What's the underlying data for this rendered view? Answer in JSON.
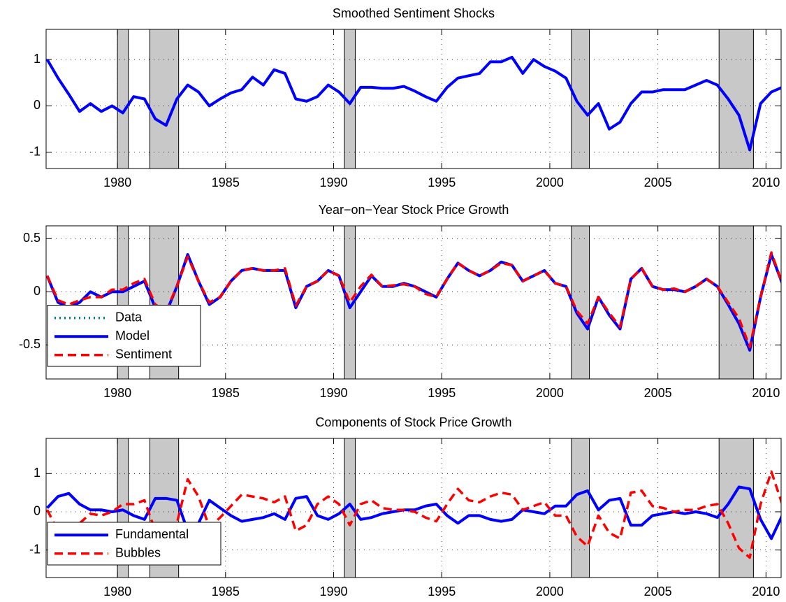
{
  "chart_data": [
    {
      "type": "line",
      "title": "Smoothed Sentiment Shocks",
      "x": [
        1976.75,
        1977.25,
        1977.75,
        1978.25,
        1978.75,
        1979.25,
        1979.75,
        1980.25,
        1980.75,
        1981.25,
        1981.75,
        1982.25,
        1982.75,
        1983.25,
        1983.75,
        1984.25,
        1984.75,
        1985.25,
        1985.75,
        1986.25,
        1986.75,
        1987.25,
        1987.75,
        1988.25,
        1988.75,
        1989.25,
        1989.75,
        1990.25,
        1990.75,
        1991.25,
        1991.75,
        1992.25,
        1992.75,
        1993.25,
        1993.75,
        1994.25,
        1994.75,
        1995.25,
        1995.75,
        1996.25,
        1996.75,
        1997.25,
        1997.75,
        1998.25,
        1998.75,
        1999.25,
        1999.75,
        2000.25,
        2000.75,
        2001.25,
        2001.75,
        2002.25,
        2002.75,
        2003.25,
        2003.75,
        2004.25,
        2004.75,
        2005.25,
        2005.75,
        2006.25,
        2006.75,
        2007.25,
        2007.75,
        2008.25,
        2008.75,
        2009.25,
        2009.75,
        2010.25,
        2010.75
      ],
      "series": [
        {
          "color": "#0000ff",
          "style": "solid",
          "values": [
            1.0,
            0.6,
            0.25,
            -0.12,
            0.05,
            -0.12,
            0.0,
            -0.15,
            0.2,
            0.15,
            -0.28,
            -0.42,
            0.15,
            0.45,
            0.3,
            0.0,
            0.15,
            0.28,
            0.35,
            0.62,
            0.45,
            0.78,
            0.7,
            0.15,
            0.1,
            0.2,
            0.45,
            0.3,
            0.05,
            0.4,
            0.4,
            0.38,
            0.38,
            0.42,
            0.32,
            0.2,
            0.1,
            0.4,
            0.6,
            0.65,
            0.7,
            0.95,
            0.95,
            1.05,
            0.7,
            1.0,
            0.85,
            0.75,
            0.6,
            0.1,
            -0.2,
            0.05,
            -0.5,
            -0.35,
            0.05,
            0.3,
            0.3,
            0.35,
            0.35,
            0.35,
            0.45,
            0.55,
            0.45,
            0.15,
            -0.2,
            -0.95,
            0.05,
            0.3,
            0.4
          ]
        }
      ],
      "recessions": [
        [
          1980.0,
          1980.5
        ],
        [
          1981.5,
          1982.83
        ],
        [
          1990.5,
          1991.0
        ],
        [
          2001.0,
          2001.83
        ],
        [
          2007.83,
          2009.42
        ]
      ],
      "xlim": [
        1976.7,
        2010.7
      ],
      "xticks": [
        1980,
        1985,
        1990,
        1995,
        2000,
        2005,
        2010
      ],
      "ylim": [
        -1.35,
        1.65
      ],
      "yticks": [
        -1,
        0,
        1
      ],
      "grid": true
    },
    {
      "type": "line",
      "title": "Year−on−Year Stock Price Growth",
      "x": [
        1976.75,
        1977.25,
        1977.75,
        1978.25,
        1978.75,
        1979.25,
        1979.75,
        1980.25,
        1980.75,
        1981.25,
        1981.75,
        1982.25,
        1982.75,
        1983.25,
        1983.75,
        1984.25,
        1984.75,
        1985.25,
        1985.75,
        1986.25,
        1986.75,
        1987.25,
        1987.75,
        1988.25,
        1988.75,
        1989.25,
        1989.75,
        1990.25,
        1990.75,
        1991.25,
        1991.75,
        1992.25,
        1992.75,
        1993.25,
        1993.75,
        1994.25,
        1994.75,
        1995.25,
        1995.75,
        1996.25,
        1996.75,
        1997.25,
        1997.75,
        1998.25,
        1998.75,
        1999.25,
        1999.75,
        2000.25,
        2000.75,
        2001.25,
        2001.75,
        2002.25,
        2002.75,
        2003.25,
        2003.75,
        2004.25,
        2004.75,
        2005.25,
        2005.75,
        2006.25,
        2006.75,
        2007.25,
        2007.75,
        2008.25,
        2008.75,
        2009.25,
        2009.75,
        2010.25,
        2010.75
      ],
      "series": [
        {
          "name": "Data",
          "color": "#008080",
          "style": "dotted",
          "values": [
            0.15,
            -0.1,
            -0.15,
            -0.1,
            0.0,
            -0.05,
            0.0,
            0.0,
            0.05,
            0.1,
            -0.15,
            -0.2,
            0.05,
            0.35,
            0.1,
            -0.12,
            -0.05,
            0.1,
            0.2,
            0.22,
            0.2,
            0.2,
            0.2,
            -0.15,
            0.05,
            0.1,
            0.2,
            0.15,
            -0.15,
            0.0,
            0.15,
            0.05,
            0.05,
            0.08,
            0.05,
            0.0,
            -0.05,
            0.12,
            0.27,
            0.2,
            0.15,
            0.2,
            0.28,
            0.25,
            0.1,
            0.15,
            0.2,
            0.08,
            0.05,
            -0.2,
            -0.35,
            -0.05,
            -0.22,
            -0.35,
            0.12,
            0.22,
            0.05,
            0.02,
            0.02,
            0.0,
            0.05,
            0.12,
            0.05,
            -0.12,
            -0.3,
            -0.55,
            -0.05,
            0.35,
            0.08
          ]
        },
        {
          "name": "Model",
          "color": "#0000ff",
          "style": "solid",
          "values": [
            0.15,
            -0.1,
            -0.15,
            -0.1,
            0.0,
            -0.05,
            0.0,
            0.0,
            0.05,
            0.1,
            -0.15,
            -0.2,
            0.05,
            0.35,
            0.1,
            -0.12,
            -0.05,
            0.1,
            0.2,
            0.22,
            0.2,
            0.2,
            0.2,
            -0.15,
            0.05,
            0.1,
            0.2,
            0.15,
            -0.15,
            0.0,
            0.15,
            0.05,
            0.05,
            0.08,
            0.05,
            0.0,
            -0.05,
            0.12,
            0.27,
            0.2,
            0.15,
            0.2,
            0.28,
            0.25,
            0.1,
            0.15,
            0.2,
            0.08,
            0.05,
            -0.2,
            -0.35,
            -0.05,
            -0.22,
            -0.35,
            0.12,
            0.22,
            0.05,
            0.02,
            0.02,
            0.0,
            0.05,
            0.12,
            0.05,
            -0.12,
            -0.3,
            -0.55,
            -0.05,
            0.35,
            0.08
          ]
        },
        {
          "name": "Sentiment",
          "color": "#ff0000",
          "style": "dashed",
          "values": [
            0.15,
            -0.08,
            -0.12,
            -0.08,
            -0.05,
            -0.05,
            0.02,
            0.02,
            0.08,
            0.12,
            -0.12,
            -0.18,
            0.05,
            0.33,
            0.1,
            -0.1,
            -0.05,
            0.1,
            0.2,
            0.22,
            0.2,
            0.2,
            0.22,
            -0.13,
            0.05,
            0.1,
            0.2,
            0.15,
            -0.1,
            0.05,
            0.16,
            0.05,
            0.06,
            0.07,
            0.05,
            -0.02,
            -0.05,
            0.12,
            0.27,
            0.2,
            0.15,
            0.2,
            0.27,
            0.25,
            0.1,
            0.15,
            0.2,
            0.08,
            0.05,
            -0.18,
            -0.3,
            -0.05,
            -0.2,
            -0.33,
            0.12,
            0.22,
            0.05,
            0.02,
            0.03,
            0.0,
            0.05,
            0.12,
            0.05,
            -0.1,
            -0.25,
            -0.52,
            -0.05,
            0.37,
            0.08
          ]
        }
      ],
      "recessions": [
        [
          1980.0,
          1980.5
        ],
        [
          1981.5,
          1982.83
        ],
        [
          1990.5,
          1991.0
        ],
        [
          2001.0,
          2001.83
        ],
        [
          2007.83,
          2009.42
        ]
      ],
      "xlim": [
        1976.7,
        2010.7
      ],
      "xticks": [
        1980,
        1985,
        1990,
        1995,
        2000,
        2005,
        2010
      ],
      "ylim": [
        -0.82,
        0.62
      ],
      "yticks": [
        -0.5,
        0,
        0.5
      ],
      "grid": true,
      "legend": "lower left"
    },
    {
      "type": "line",
      "title": "Components of Stock Price Growth",
      "x": [
        1976.75,
        1977.25,
        1977.75,
        1978.25,
        1978.75,
        1979.25,
        1979.75,
        1980.25,
        1980.75,
        1981.25,
        1981.75,
        1982.25,
        1982.75,
        1983.25,
        1983.75,
        1984.25,
        1984.75,
        1985.25,
        1985.75,
        1986.25,
        1986.75,
        1987.25,
        1987.75,
        1988.25,
        1988.75,
        1989.25,
        1989.75,
        1990.25,
        1990.75,
        1991.25,
        1991.75,
        1992.25,
        1992.75,
        1993.25,
        1993.75,
        1994.25,
        1994.75,
        1995.25,
        1995.75,
        1996.25,
        1996.75,
        1997.25,
        1997.75,
        1998.25,
        1998.75,
        1999.25,
        1999.75,
        2000.25,
        2000.75,
        2001.25,
        2001.75,
        2002.25,
        2002.75,
        2003.25,
        2003.75,
        2004.25,
        2004.75,
        2005.25,
        2005.75,
        2006.25,
        2006.75,
        2007.25,
        2007.75,
        2008.25,
        2008.75,
        2009.25,
        2009.75,
        2010.25,
        2010.75
      ],
      "series": [
        {
          "name": "Fundamental",
          "color": "#0000ff",
          "style": "solid",
          "values": [
            0.1,
            0.4,
            0.48,
            0.2,
            0.05,
            0.05,
            0.0,
            0.05,
            -0.1,
            -0.2,
            0.35,
            0.35,
            0.3,
            -0.5,
            -0.3,
            0.3,
            0.1,
            -0.1,
            -0.25,
            -0.2,
            -0.15,
            -0.05,
            -0.2,
            0.35,
            0.4,
            -0.1,
            -0.2,
            -0.05,
            0.2,
            -0.2,
            -0.15,
            -0.05,
            0.0,
            0.05,
            0.05,
            0.15,
            0.2,
            -0.1,
            -0.3,
            -0.1,
            -0.1,
            -0.2,
            -0.25,
            -0.2,
            0.05,
            0.0,
            -0.05,
            0.15,
            0.15,
            0.45,
            0.55,
            0.05,
            0.3,
            0.35,
            -0.35,
            -0.35,
            -0.1,
            -0.05,
            0.0,
            -0.05,
            0.0,
            -0.05,
            -0.15,
            0.2,
            0.65,
            0.6,
            -0.2,
            -0.7,
            -0.1
          ]
        },
        {
          "name": "Bubbles",
          "color": "#ff0000",
          "style": "dashed",
          "values": [
            0.05,
            -0.5,
            -0.65,
            -0.3,
            -0.05,
            -0.1,
            0.0,
            0.2,
            0.2,
            0.3,
            -0.5,
            -0.55,
            -0.3,
            0.85,
            0.4,
            -0.4,
            -0.15,
            0.15,
            0.45,
            0.4,
            0.35,
            0.25,
            0.4,
            -0.5,
            -0.35,
            0.2,
            0.4,
            0.2,
            -0.35,
            0.2,
            0.3,
            0.1,
            0.05,
            0.05,
            0.0,
            -0.15,
            -0.25,
            0.2,
            0.6,
            0.3,
            0.25,
            0.4,
            0.5,
            0.45,
            0.05,
            0.15,
            0.25,
            -0.1,
            -0.1,
            -0.65,
            -0.9,
            -0.1,
            -0.55,
            -0.7,
            0.5,
            0.55,
            0.15,
            0.1,
            0.0,
            0.05,
            0.05,
            0.15,
            0.2,
            -0.3,
            -0.95,
            -1.2,
            0.2,
            1.05,
            0.2
          ]
        }
      ],
      "recessions": [
        [
          1980.0,
          1980.5
        ],
        [
          1981.5,
          1982.83
        ],
        [
          1990.5,
          1991.0
        ],
        [
          2001.0,
          2001.83
        ],
        [
          2007.83,
          2009.42
        ]
      ],
      "xlim": [
        1976.7,
        2010.7
      ],
      "xticks": [
        1980,
        1985,
        1990,
        1995,
        2000,
        2005,
        2010
      ],
      "ylim": [
        -1.72,
        1.92
      ],
      "yticks": [
        -1,
        0,
        1
      ],
      "grid": true,
      "legend": "lower left"
    }
  ]
}
